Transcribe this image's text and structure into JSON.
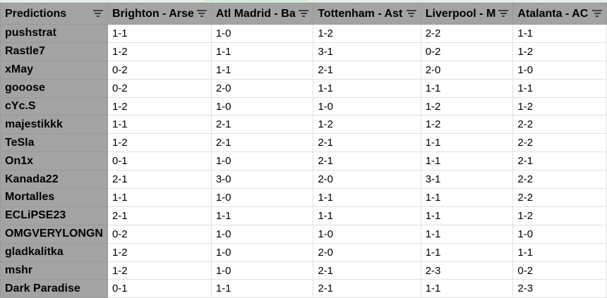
{
  "header": [
    "Predictions",
    "Brighton - Arsenal",
    "Atl Madrid - Barcelona",
    "Tottenham - Aston Villa",
    "Liverpool - Man",
    "Atalanta - AC"
  ],
  "header_visible": [
    "Predictions",
    "Brighton - Arse",
    "Atl Madrid - Ba",
    "Tottenham - Ast",
    "Liverpool - M",
    "Atalanta - AC"
  ],
  "rows": [
    {
      "name": "pushstrat",
      "p": [
        "1-1",
        "1-0",
        "1-2",
        "2-2",
        "1-1"
      ]
    },
    {
      "name": "Rastle7",
      "p": [
        "1-2",
        "1-1",
        "3-1",
        "0-2",
        "1-2"
      ]
    },
    {
      "name": "xMay",
      "p": [
        "0-2",
        "1-1",
        "2-1",
        "2-0",
        "1-0"
      ]
    },
    {
      "name": "gooose",
      "p": [
        "0-2",
        "2-0",
        "1-1",
        "1-1",
        "1-1"
      ]
    },
    {
      "name": "cYc.S",
      "p": [
        "1-2",
        "1-0",
        "1-0",
        "1-2",
        "1-2"
      ]
    },
    {
      "name": "majestikkk",
      "p": [
        "1-1",
        "2-1",
        "1-2",
        "1-2",
        "2-2"
      ]
    },
    {
      "name": "TeSla",
      "p": [
        "1-2",
        "2-1",
        "2-1",
        "1-1",
        "2-2"
      ]
    },
    {
      "name": "On1x",
      "p": [
        "0-1",
        "1-0",
        "2-1",
        "1-1",
        "2-1"
      ]
    },
    {
      "name": "Kanada22",
      "p": [
        "2-1",
        "3-0",
        "2-0",
        "3-1",
        "2-2"
      ]
    },
    {
      "name": "Mortalles",
      "p": [
        "1-1",
        "1-0",
        "1-1",
        "1-1",
        "2-2"
      ]
    },
    {
      "name": "ECLiPSE23",
      "p": [
        "2-1",
        "1-1",
        "1-1",
        "1-1",
        "1-2"
      ]
    },
    {
      "name": "OMGVERYLONGN",
      "p": [
        "0-2",
        "1-0",
        "1-0",
        "1-1",
        "1-0"
      ]
    },
    {
      "name": "gladkalitka",
      "p": [
        "1-2",
        "1-0",
        "2-0",
        "1-1",
        "1-1"
      ]
    },
    {
      "name": "mshr",
      "p": [
        "1-2",
        "1-0",
        "2-1",
        "2-3",
        "0-2"
      ]
    },
    {
      "name": "Dark Paradise",
      "p": [
        "0-1",
        "1-1",
        "2-1",
        "1-1",
        "2-3"
      ]
    }
  ]
}
